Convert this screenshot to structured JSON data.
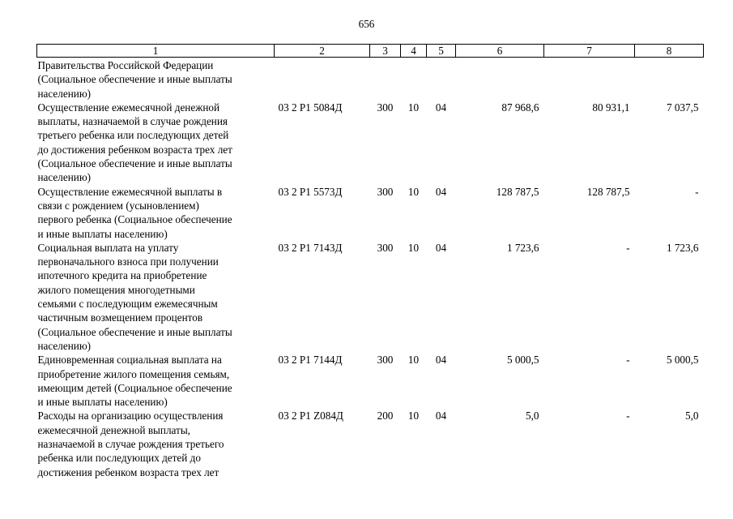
{
  "page_number": "656",
  "columns": [
    "1",
    "2",
    "3",
    "4",
    "5",
    "6",
    "7",
    "8"
  ],
  "rows": [
    {
      "desc": "Правительства Российской Федерации\n(Социальное обеспечение и иные выплаты\nнаселению)",
      "code": "",
      "c3": "",
      "c4": "",
      "c5": "",
      "c6": "",
      "c7": "",
      "c8": ""
    },
    {
      "desc": "Осуществление ежемесячной денежной\nвыплаты, назначаемой в случае рождения\nтретьего ребенка или последующих детей\nдо достижения ребенком возраста трех лет\n(Социальное обеспечение и иные выплаты\nнаселению)",
      "code": "03 2 P1 5084Д",
      "c3": "300",
      "c4": "10",
      "c5": "04",
      "c6": "87 968,6",
      "c7": "80 931,1",
      "c8": "7 037,5"
    },
    {
      "desc": "Осуществление ежемесячной выплаты в\nсвязи с рождением (усыновлением)\nпервого ребенка (Социальное обеспечение\nи иные выплаты населению)",
      "code": "03 2 P1 5573Д",
      "c3": "300",
      "c4": "10",
      "c5": "04",
      "c6": "128 787,5",
      "c7": "128 787,5",
      "c8": "-"
    },
    {
      "desc": "Социальная выплата на уплату\nпервоначального взноса при получении\nипотечного кредита на приобретение\nжилого помещения многодетными\nсемьями с последующим ежемесячным\nчастичным возмещением процентов\n(Социальное обеспечение и иные выплаты\nнаселению)",
      "code": "03 2 P1 7143Д",
      "c3": "300",
      "c4": "10",
      "c5": "04",
      "c6": "1 723,6",
      "c7": "-",
      "c8": "1 723,6"
    },
    {
      "desc": "Единовременная социальная выплата на\nприобретение жилого помещения семьям,\nимеющим детей (Социальное обеспечение\nи иные выплаты населению)",
      "code": "03 2 P1 7144Д",
      "c3": "300",
      "c4": "10",
      "c5": "04",
      "c6": "5 000,5",
      "c7": "-",
      "c8": "5 000,5"
    },
    {
      "desc": "Расходы на организацию осуществления\nежемесячной денежной выплаты,\nназначаемой в случае рождения третьего\nребенка или последующих детей до\nдостижения ребенком возраста трех лет",
      "code": "03 2 P1 Z084Д",
      "c3": "200",
      "c4": "10",
      "c5": "04",
      "c6": "5,0",
      "c7": "-",
      "c8": "5,0"
    }
  ]
}
